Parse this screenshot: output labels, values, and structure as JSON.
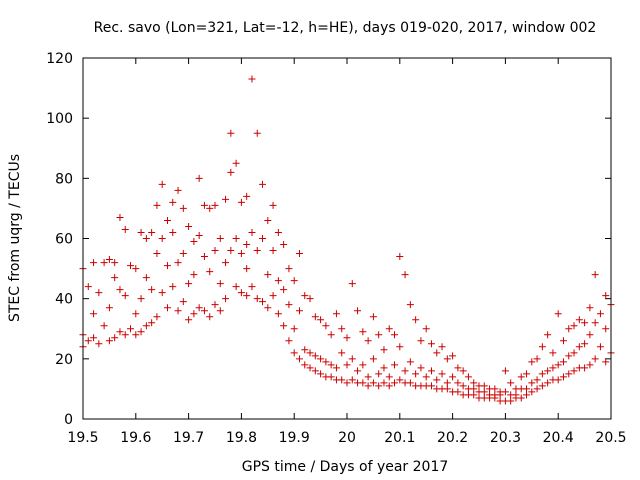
{
  "chart_data": {
    "type": "scatter",
    "title": "Rec. savo (Lon=321, Lat=-12, h=HE), days 019-020, 2017, window 002",
    "xlabel": "GPS time / Days of year 2017",
    "ylabel": "STEC from uqrg / TECUs",
    "xlim": [
      19.5,
      20.5
    ],
    "ylim": [
      0,
      120
    ],
    "xticks": [
      "19.5",
      "19.6",
      "19.7",
      "19.8",
      "19.9",
      "20",
      "20.1",
      "20.2",
      "20.3",
      "20.4",
      "20.5"
    ],
    "yticks": [
      "0",
      "20",
      "40",
      "60",
      "80",
      "100",
      "120"
    ],
    "marker_color": "#cc0000",
    "series": [
      {
        "name": "STEC",
        "marker": "plus",
        "points": [
          [
            19.5,
            50
          ],
          [
            19.5,
            28
          ],
          [
            19.5,
            24
          ],
          [
            19.51,
            44
          ],
          [
            19.51,
            26
          ],
          [
            19.52,
            52
          ],
          [
            19.52,
            35
          ],
          [
            19.52,
            27
          ],
          [
            19.53,
            42
          ],
          [
            19.53,
            25
          ],
          [
            19.54,
            52
          ],
          [
            19.54,
            31
          ],
          [
            19.55,
            53
          ],
          [
            19.55,
            37
          ],
          [
            19.55,
            26
          ],
          [
            19.56,
            52
          ],
          [
            19.56,
            47
          ],
          [
            19.56,
            27
          ],
          [
            19.57,
            67
          ],
          [
            19.57,
            43
          ],
          [
            19.57,
            29
          ],
          [
            19.58,
            63
          ],
          [
            19.58,
            41
          ],
          [
            19.58,
            28
          ],
          [
            19.59,
            51
          ],
          [
            19.59,
            30
          ],
          [
            19.6,
            50
          ],
          [
            19.6,
            35
          ],
          [
            19.6,
            28
          ],
          [
            19.61,
            62
          ],
          [
            19.61,
            40
          ],
          [
            19.61,
            29
          ],
          [
            19.62,
            60
          ],
          [
            19.62,
            47
          ],
          [
            19.62,
            31
          ],
          [
            19.63,
            62
          ],
          [
            19.63,
            43
          ],
          [
            19.63,
            32
          ],
          [
            19.64,
            71
          ],
          [
            19.64,
            55
          ],
          [
            19.64,
            34
          ],
          [
            19.65,
            78
          ],
          [
            19.65,
            60
          ],
          [
            19.65,
            42
          ],
          [
            19.66,
            66
          ],
          [
            19.66,
            51
          ],
          [
            19.66,
            37
          ],
          [
            19.67,
            72
          ],
          [
            19.67,
            62
          ],
          [
            19.67,
            44
          ],
          [
            19.68,
            76
          ],
          [
            19.68,
            52
          ],
          [
            19.68,
            36
          ],
          [
            19.69,
            70
          ],
          [
            19.69,
            55
          ],
          [
            19.69,
            39
          ],
          [
            19.7,
            64
          ],
          [
            19.7,
            45
          ],
          [
            19.7,
            33
          ],
          [
            19.71,
            59
          ],
          [
            19.71,
            48
          ],
          [
            19.71,
            35
          ],
          [
            19.72,
            80
          ],
          [
            19.72,
            61
          ],
          [
            19.72,
            37
          ],
          [
            19.73,
            71
          ],
          [
            19.73,
            54
          ],
          [
            19.73,
            36
          ],
          [
            19.74,
            70
          ],
          [
            19.74,
            49
          ],
          [
            19.74,
            34
          ],
          [
            19.75,
            71
          ],
          [
            19.75,
            56
          ],
          [
            19.75,
            38
          ],
          [
            19.76,
            60
          ],
          [
            19.76,
            45
          ],
          [
            19.76,
            36
          ],
          [
            19.77,
            73
          ],
          [
            19.77,
            52
          ],
          [
            19.77,
            40
          ],
          [
            19.78,
            95
          ],
          [
            19.78,
            82
          ],
          [
            19.78,
            56
          ],
          [
            19.79,
            85
          ],
          [
            19.79,
            60
          ],
          [
            19.79,
            44
          ],
          [
            19.8,
            72
          ],
          [
            19.8,
            55
          ],
          [
            19.8,
            42
          ],
          [
            19.81,
            74
          ],
          [
            19.81,
            58
          ],
          [
            19.81,
            50
          ],
          [
            19.81,
            41
          ],
          [
            19.82,
            113
          ],
          [
            19.82,
            62
          ],
          [
            19.82,
            44
          ],
          [
            19.83,
            95
          ],
          [
            19.83,
            56
          ],
          [
            19.83,
            40
          ],
          [
            19.84,
            78
          ],
          [
            19.84,
            60
          ],
          [
            19.84,
            39
          ],
          [
            19.85,
            66
          ],
          [
            19.85,
            48
          ],
          [
            19.85,
            37
          ],
          [
            19.86,
            71
          ],
          [
            19.86,
            56
          ],
          [
            19.86,
            41
          ],
          [
            19.87,
            62
          ],
          [
            19.87,
            46
          ],
          [
            19.87,
            35
          ],
          [
            19.88,
            58
          ],
          [
            19.88,
            43
          ],
          [
            19.88,
            31
          ],
          [
            19.89,
            50
          ],
          [
            19.89,
            38
          ],
          [
            19.89,
            26
          ],
          [
            19.9,
            46
          ],
          [
            19.9,
            30
          ],
          [
            19.9,
            22
          ],
          [
            19.91,
            55
          ],
          [
            19.91,
            36
          ],
          [
            19.91,
            20
          ],
          [
            19.92,
            41
          ],
          [
            19.92,
            23
          ],
          [
            19.92,
            18
          ],
          [
            19.93,
            40
          ],
          [
            19.93,
            22
          ],
          [
            19.93,
            17
          ],
          [
            19.94,
            34
          ],
          [
            19.94,
            21
          ],
          [
            19.94,
            16
          ],
          [
            19.95,
            33
          ],
          [
            19.95,
            20
          ],
          [
            19.95,
            15
          ],
          [
            19.96,
            31
          ],
          [
            19.96,
            19
          ],
          [
            19.96,
            14
          ],
          [
            19.97,
            28
          ],
          [
            19.97,
            18
          ],
          [
            19.97,
            14
          ],
          [
            19.98,
            35
          ],
          [
            19.98,
            17
          ],
          [
            19.98,
            13
          ],
          [
            19.99,
            30
          ],
          [
            19.99,
            22
          ],
          [
            19.99,
            13
          ],
          [
            20.0,
            27
          ],
          [
            20.0,
            18
          ],
          [
            20.0,
            12
          ],
          [
            20.01,
            45
          ],
          [
            20.01,
            20
          ],
          [
            20.01,
            13
          ],
          [
            20.02,
            36
          ],
          [
            20.02,
            16
          ],
          [
            20.02,
            12
          ],
          [
            20.03,
            29
          ],
          [
            20.03,
            18
          ],
          [
            20.03,
            12
          ],
          [
            20.04,
            26
          ],
          [
            20.04,
            14
          ],
          [
            20.04,
            11
          ],
          [
            20.05,
            34
          ],
          [
            20.05,
            20
          ],
          [
            20.05,
            12
          ],
          [
            20.06,
            28
          ],
          [
            20.06,
            15
          ],
          [
            20.06,
            11
          ],
          [
            20.07,
            23
          ],
          [
            20.07,
            17
          ],
          [
            20.07,
            12
          ],
          [
            20.08,
            30
          ],
          [
            20.08,
            14
          ],
          [
            20.08,
            11
          ],
          [
            20.09,
            28
          ],
          [
            20.09,
            18
          ],
          [
            20.09,
            12
          ],
          [
            20.1,
            54
          ],
          [
            20.1,
            24
          ],
          [
            20.1,
            13
          ],
          [
            20.11,
            48
          ],
          [
            20.11,
            16
          ],
          [
            20.11,
            12
          ],
          [
            20.12,
            38
          ],
          [
            20.12,
            19
          ],
          [
            20.12,
            12
          ],
          [
            20.13,
            33
          ],
          [
            20.13,
            15
          ],
          [
            20.13,
            11
          ],
          [
            20.14,
            26
          ],
          [
            20.14,
            17
          ],
          [
            20.14,
            11
          ],
          [
            20.15,
            30
          ],
          [
            20.15,
            14
          ],
          [
            20.15,
            11
          ],
          [
            20.16,
            25
          ],
          [
            20.16,
            16
          ],
          [
            20.16,
            11
          ],
          [
            20.17,
            22
          ],
          [
            20.17,
            13
          ],
          [
            20.17,
            10
          ],
          [
            20.18,
            24
          ],
          [
            20.18,
            15
          ],
          [
            20.18,
            10
          ],
          [
            20.19,
            20
          ],
          [
            20.19,
            12
          ],
          [
            20.19,
            10
          ],
          [
            20.2,
            21
          ],
          [
            20.2,
            14
          ],
          [
            20.2,
            9
          ],
          [
            20.21,
            17
          ],
          [
            20.21,
            12
          ],
          [
            20.21,
            9
          ],
          [
            20.22,
            16
          ],
          [
            20.22,
            11
          ],
          [
            20.22,
            8
          ],
          [
            20.23,
            14
          ],
          [
            20.23,
            10
          ],
          [
            20.23,
            8
          ],
          [
            20.24,
            12
          ],
          [
            20.24,
            10
          ],
          [
            20.24,
            8
          ],
          [
            20.25,
            11
          ],
          [
            20.25,
            9
          ],
          [
            20.25,
            7
          ],
          [
            20.26,
            11
          ],
          [
            20.26,
            9
          ],
          [
            20.26,
            7
          ],
          [
            20.27,
            10
          ],
          [
            20.27,
            8
          ],
          [
            20.27,
            7
          ],
          [
            20.28,
            10
          ],
          [
            20.28,
            8
          ],
          [
            20.28,
            7
          ],
          [
            20.29,
            9
          ],
          [
            20.29,
            8
          ],
          [
            20.29,
            6
          ],
          [
            20.3,
            16
          ],
          [
            20.3,
            9
          ],
          [
            20.3,
            6
          ],
          [
            20.31,
            12
          ],
          [
            20.31,
            8
          ],
          [
            20.31,
            6
          ],
          [
            20.32,
            10
          ],
          [
            20.32,
            8
          ],
          [
            20.32,
            7
          ],
          [
            20.33,
            14
          ],
          [
            20.33,
            10
          ],
          [
            20.33,
            7
          ],
          [
            20.34,
            15
          ],
          [
            20.34,
            10
          ],
          [
            20.34,
            8
          ],
          [
            20.35,
            19
          ],
          [
            20.35,
            12
          ],
          [
            20.35,
            9
          ],
          [
            20.36,
            20
          ],
          [
            20.36,
            13
          ],
          [
            20.36,
            10
          ],
          [
            20.37,
            24
          ],
          [
            20.37,
            15
          ],
          [
            20.37,
            11
          ],
          [
            20.38,
            28
          ],
          [
            20.38,
            16
          ],
          [
            20.38,
            12
          ],
          [
            20.39,
            22
          ],
          [
            20.39,
            17
          ],
          [
            20.39,
            13
          ],
          [
            20.4,
            35
          ],
          [
            20.4,
            18
          ],
          [
            20.4,
            13
          ],
          [
            20.41,
            26
          ],
          [
            20.41,
            19
          ],
          [
            20.41,
            14
          ],
          [
            20.42,
            30
          ],
          [
            20.42,
            21
          ],
          [
            20.42,
            15
          ],
          [
            20.43,
            31
          ],
          [
            20.43,
            22
          ],
          [
            20.43,
            16
          ],
          [
            20.44,
            33
          ],
          [
            20.44,
            24
          ],
          [
            20.44,
            17
          ],
          [
            20.45,
            32
          ],
          [
            20.45,
            25
          ],
          [
            20.45,
            17
          ],
          [
            20.46,
            37
          ],
          [
            20.46,
            28
          ],
          [
            20.46,
            18
          ],
          [
            20.47,
            48
          ],
          [
            20.47,
            32
          ],
          [
            20.47,
            20
          ],
          [
            20.48,
            35
          ],
          [
            20.48,
            24
          ],
          [
            20.49,
            41
          ],
          [
            20.49,
            30
          ],
          [
            20.49,
            19
          ],
          [
            20.5,
            38
          ],
          [
            20.5,
            22
          ]
        ]
      }
    ]
  }
}
